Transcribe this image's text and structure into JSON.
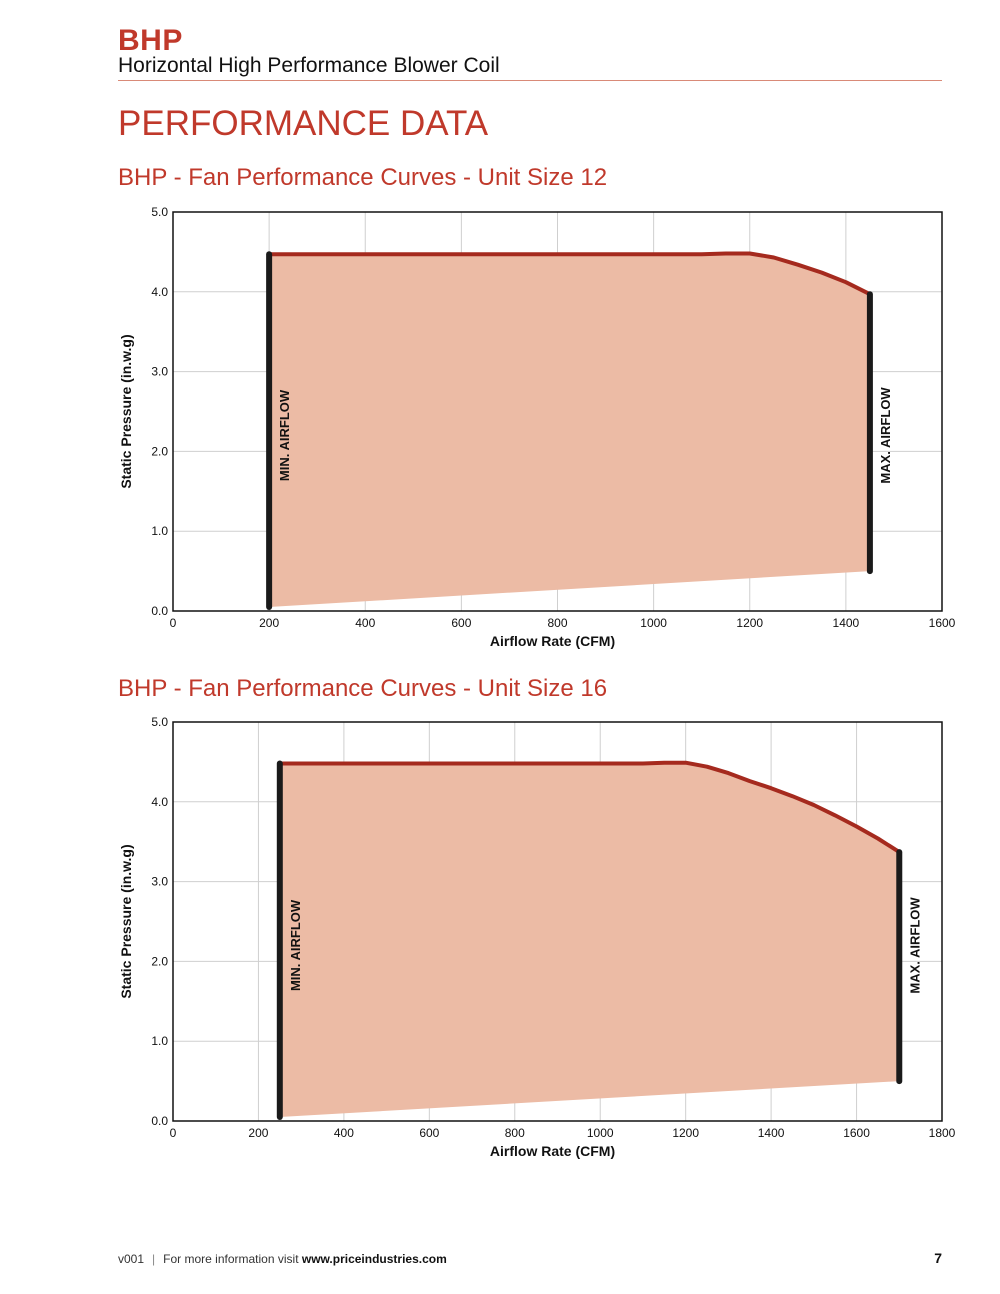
{
  "header": {
    "brand": "BHP",
    "subtitle": "Horizontal High Performance Blower Coil"
  },
  "section_title": "PERFORMANCE DATA",
  "colors": {
    "accent": "#c0392b",
    "fill": "#ecbba5",
    "curve": "#a52a1e",
    "limit_line": "#1a1a1a"
  },
  "chart_data": [
    {
      "type": "area",
      "title": "BHP - Fan Performance Curves - Unit Size 12",
      "xlabel": "Airflow Rate (CFM)",
      "ylabel": "Static Pressure (in.w.g)",
      "xlim": [
        0,
        1600
      ],
      "ylim": [
        0,
        5
      ],
      "xticks": [
        0,
        200,
        400,
        600,
        800,
        1000,
        1200,
        1400,
        1600
      ],
      "yticks": [
        "0.0",
        "1.0",
        "2.0",
        "3.0",
        "4.0",
        "5.0"
      ],
      "grid": true,
      "upper_curve": {
        "x": [
          200,
          600,
          1000,
          1100,
          1150,
          1200,
          1250,
          1300,
          1350,
          1400,
          1450
        ],
        "y": [
          4.47,
          4.47,
          4.47,
          4.47,
          4.48,
          4.48,
          4.43,
          4.34,
          4.24,
          4.12,
          3.97
        ]
      },
      "lower_curve": {
        "x": [
          200,
          1450
        ],
        "y": [
          0.05,
          0.5
        ]
      },
      "min_airflow": {
        "label": "MIN. AIRFLOW",
        "x": 200,
        "y_range": [
          0.05,
          4.47
        ]
      },
      "max_airflow": {
        "label": "MAX. AIRFLOW",
        "x": 1450,
        "y_range": [
          0.5,
          3.97
        ]
      }
    },
    {
      "type": "area",
      "title": "BHP - Fan Performance Curves - Unit Size 16",
      "xlabel": "Airflow Rate (CFM)",
      "ylabel": "Static Pressure (in.w.g)",
      "xlim": [
        0,
        1800
      ],
      "ylim": [
        0,
        5
      ],
      "xticks": [
        0,
        200,
        400,
        600,
        800,
        1000,
        1200,
        1400,
        1600,
        1800
      ],
      "yticks": [
        "0.0",
        "1.0",
        "2.0",
        "3.0",
        "4.0",
        "5.0"
      ],
      "grid": true,
      "upper_curve": {
        "x": [
          250,
          600,
          1000,
          1100,
          1150,
          1200,
          1250,
          1300,
          1350,
          1400,
          1450,
          1500,
          1550,
          1600,
          1650,
          1700
        ],
        "y": [
          4.48,
          4.48,
          4.48,
          4.48,
          4.49,
          4.49,
          4.44,
          4.36,
          4.26,
          4.17,
          4.07,
          3.96,
          3.83,
          3.69,
          3.54,
          3.37
        ]
      },
      "lower_curve": {
        "x": [
          250,
          1700
        ],
        "y": [
          0.05,
          0.5
        ]
      },
      "min_airflow": {
        "label": "MIN. AIRFLOW",
        "x": 250,
        "y_range": [
          0.05,
          4.48
        ]
      },
      "max_airflow": {
        "label": "MAX. AIRFLOW",
        "x": 1700,
        "y_range": [
          0.5,
          3.37
        ]
      }
    }
  ],
  "footer": {
    "version": "v001",
    "separator": "|",
    "text": "For more information visit ",
    "url": "www.priceindustries.com",
    "page": "7"
  }
}
